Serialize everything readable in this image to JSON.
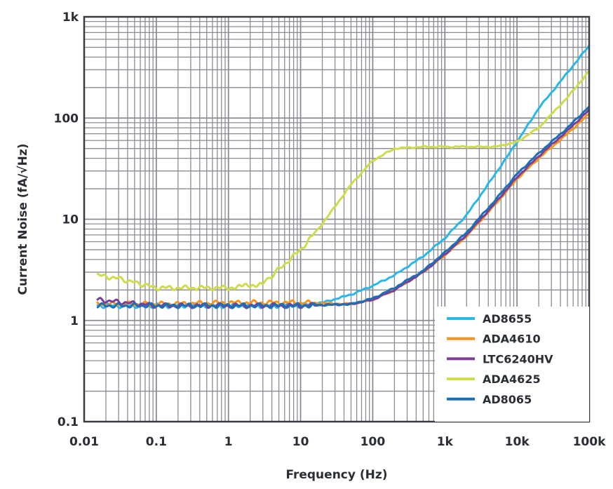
{
  "chart_data": {
    "type": "line",
    "title": "",
    "xlabel": "Frequency (Hz)",
    "ylabel": "Current Noise (fA/√Hz)",
    "xscale": "log",
    "yscale": "log",
    "xlim": [
      0.01,
      100000
    ],
    "ylim": [
      0.1,
      1000
    ],
    "grid": true,
    "legend_placement": "bottom-right",
    "x_ticks": [
      0.01,
      0.1,
      1,
      10,
      100,
      1000,
      10000,
      100000
    ],
    "x_tick_labels": [
      "0.01",
      "0.1",
      "1",
      "10",
      "100",
      "1k",
      "10k",
      "100k"
    ],
    "y_ticks": [
      0.1,
      1,
      10,
      100,
      1000
    ],
    "y_tick_labels": [
      "0.1",
      "1",
      "10",
      "100",
      "1k"
    ],
    "series": [
      {
        "name": "AD8655",
        "color": "#29b6e8",
        "x": [
          0.015,
          0.1,
          1,
          10,
          20,
          50,
          100,
          200,
          500,
          1000,
          2000,
          5000,
          10000,
          20000,
          50000,
          100000
        ],
        "y": [
          1.4,
          1.4,
          1.4,
          1.4,
          1.5,
          1.8,
          2.2,
          2.8,
          4.3,
          6.5,
          11,
          28,
          58,
          125,
          280,
          520
        ]
      },
      {
        "name": "ADA4610",
        "color": "#f7941d",
        "x": [
          0.015,
          0.1,
          1,
          10,
          50,
          100,
          200,
          500,
          1000,
          2000,
          5000,
          10000,
          20000,
          50000,
          100000
        ],
        "y": [
          1.45,
          1.45,
          1.5,
          1.5,
          1.45,
          1.6,
          2.0,
          3.0,
          4.4,
          6.8,
          14,
          25,
          40,
          70,
          110
        ]
      },
      {
        "name": "LTC6240HV",
        "color": "#7b3f99",
        "x": [
          0.015,
          0.1,
          1,
          10,
          50,
          100,
          200,
          500,
          1000,
          2000,
          5000,
          10000,
          20000,
          50000,
          100000
        ],
        "y": [
          1.6,
          1.4,
          1.4,
          1.4,
          1.45,
          1.6,
          2.0,
          3.0,
          4.5,
          7.0,
          14.5,
          26,
          42,
          75,
          120
        ]
      },
      {
        "name": "ADA4625",
        "color": "#cfdc4a",
        "x": [
          0.015,
          0.03,
          0.1,
          1,
          3,
          5,
          10,
          20,
          50,
          100,
          200,
          500,
          1000,
          5000,
          10000,
          20000,
          50000,
          100000
        ],
        "y": [
          2.8,
          2.6,
          2.1,
          2.1,
          2.3,
          3.2,
          5,
          9,
          22,
          38,
          50,
          52,
          52,
          52,
          58,
          80,
          160,
          290
        ]
      },
      {
        "name": "AD8065",
        "color": "#1a6fb5",
        "x": [
          0.015,
          0.1,
          1,
          10,
          50,
          100,
          200,
          500,
          1000,
          2000,
          5000,
          10000,
          20000,
          50000,
          100000
        ],
        "y": [
          1.4,
          1.4,
          1.4,
          1.4,
          1.45,
          1.65,
          2.1,
          3.1,
          4.7,
          7.4,
          15.5,
          28,
          45,
          80,
          130
        ]
      }
    ]
  }
}
